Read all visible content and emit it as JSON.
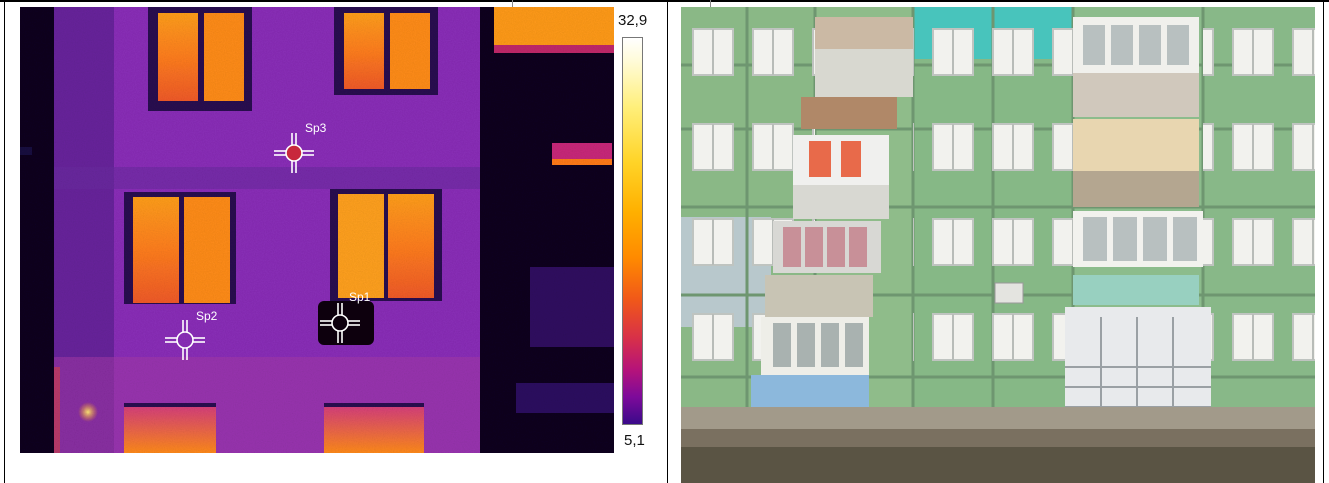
{
  "thermogram": {
    "scale_max": "32,9",
    "scale_min": "5,1",
    "spots": [
      {
        "label": "Sp1"
      },
      {
        "label": "Sp2"
      },
      {
        "label": "Sp3"
      }
    ]
  },
  "colors": {
    "cold": "#0a0520",
    "wall": "#8a2eb8",
    "window_hot": "#ffa500",
    "spot_fill": "#c8283c",
    "facade_green": "#8ab886",
    "facade_teal": "#48c4bc",
    "sky": "#dfe6ec"
  }
}
